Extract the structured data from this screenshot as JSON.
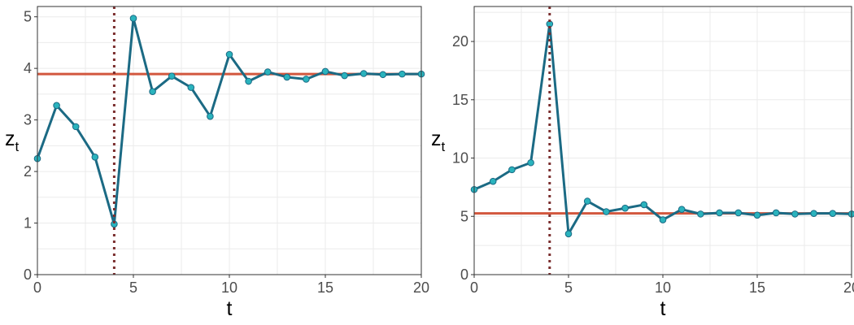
{
  "chart_data": [
    {
      "type": "line",
      "xlabel": "t",
      "ylabel": "z",
      "ylabel_subscript": "t",
      "xlim": [
        0,
        20
      ],
      "ylim": [
        0,
        5.2
      ],
      "x_ticks": [
        0,
        5,
        10,
        15,
        20
      ],
      "x_tick_labels": [
        "0",
        "5",
        "10",
        "15",
        "20"
      ],
      "y_ticks": [
        0,
        1,
        2,
        3,
        4,
        5
      ],
      "y_tick_labels": [
        "0",
        "1",
        "2",
        "3",
        "4",
        "5"
      ],
      "grid": true,
      "series": [
        {
          "x": [
            0,
            1,
            2,
            3,
            4,
            5,
            6,
            7,
            8,
            9,
            10,
            11,
            12,
            13,
            14,
            15,
            16,
            17,
            18,
            19,
            20
          ],
          "values": [
            2.25,
            3.28,
            2.87,
            2.28,
            0.98,
            4.97,
            3.55,
            3.85,
            3.63,
            3.07,
            4.27,
            3.75,
            3.93,
            3.83,
            3.79,
            3.94,
            3.86,
            3.9,
            3.88,
            3.89,
            3.89
          ]
        }
      ],
      "hline": 3.89,
      "vline": 4
    },
    {
      "type": "line",
      "xlabel": "t",
      "ylabel": "z",
      "ylabel_subscript": "t",
      "xlim": [
        0,
        20
      ],
      "ylim": [
        0,
        23
      ],
      "x_ticks": [
        0,
        5,
        10,
        15,
        20
      ],
      "x_tick_labels": [
        "0",
        "5",
        "10",
        "15",
        "20"
      ],
      "y_ticks": [
        0,
        5,
        10,
        15,
        20
      ],
      "y_tick_labels": [
        "0",
        "5",
        "10",
        "15",
        "20"
      ],
      "grid": true,
      "series": [
        {
          "x": [
            0,
            1,
            2,
            3,
            4,
            5,
            6,
            7,
            8,
            9,
            10,
            11,
            12,
            13,
            14,
            15,
            16,
            17,
            18,
            19,
            20
          ],
          "values": [
            7.3,
            8.0,
            9.0,
            9.6,
            21.5,
            3.5,
            6.3,
            5.4,
            5.7,
            6.0,
            4.7,
            5.6,
            5.2,
            5.3,
            5.3,
            5.1,
            5.3,
            5.2,
            5.25,
            5.25,
            5.2
          ]
        }
      ],
      "hline": 5.25,
      "vline": 4
    }
  ],
  "colors": {
    "series_line": "#1b6a84",
    "point_fill": "#2ab3bd",
    "hline": "#d2573e",
    "vline": "#7a2e2e",
    "grid": "#ebebeb",
    "panel_border": "#333333"
  }
}
